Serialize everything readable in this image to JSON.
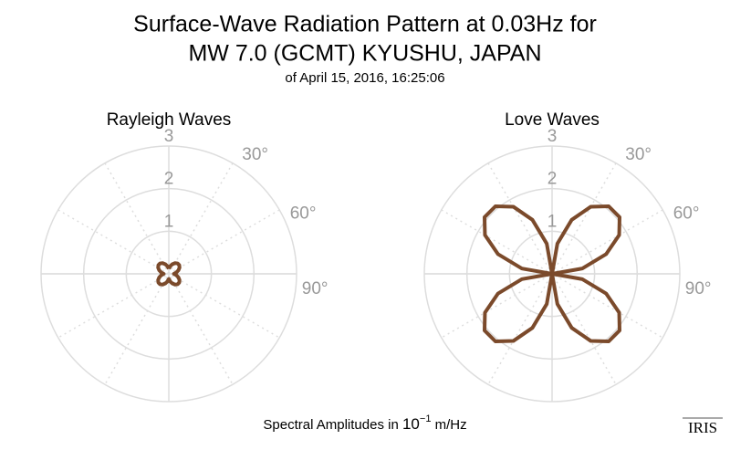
{
  "header": {
    "title_line1": "Surface-Wave Radiation Pattern at 0.03Hz for",
    "title_line2": "MW 7.0 (GCMT) KYUSHU, JAPAN",
    "subtitle": "of April 15, 2016, 16:25:06"
  },
  "chart_data": [
    {
      "type": "polar",
      "title": "Rayleigh Waves",
      "color": "#7b4a2b",
      "rlim": [
        0,
        3
      ],
      "rticks": [
        1,
        2,
        3
      ],
      "thetaticks": [
        {
          "value": 30,
          "label": "30°"
        },
        {
          "value": 60,
          "label": "60°"
        },
        {
          "value": 90,
          "label": "90°"
        }
      ],
      "theta": [
        0,
        10,
        20,
        30,
        40,
        50,
        60,
        70,
        80,
        90,
        100,
        110,
        120,
        130,
        140,
        150,
        160,
        170,
        180,
        190,
        200,
        210,
        220,
        230,
        240,
        250,
        260,
        270,
        280,
        290,
        300,
        310,
        320,
        330,
        340,
        350,
        360
      ],
      "r": [
        0.12,
        0.18,
        0.24,
        0.29,
        0.32,
        0.32,
        0.29,
        0.24,
        0.18,
        0.12,
        0.18,
        0.24,
        0.29,
        0.32,
        0.32,
        0.29,
        0.24,
        0.18,
        0.12,
        0.18,
        0.24,
        0.29,
        0.32,
        0.32,
        0.29,
        0.24,
        0.18,
        0.12,
        0.18,
        0.24,
        0.29,
        0.32,
        0.32,
        0.29,
        0.24,
        0.18,
        0.12
      ]
    },
    {
      "type": "polar",
      "title": "Love Waves",
      "color": "#7b4a2b",
      "rlim": [
        0,
        3
      ],
      "rticks": [
        1,
        2,
        3
      ],
      "thetaticks": [
        {
          "value": 30,
          "label": "30°"
        },
        {
          "value": 60,
          "label": "60°"
        },
        {
          "value": 90,
          "label": "90°"
        }
      ],
      "theta": [
        0,
        10,
        20,
        30,
        40,
        50,
        60,
        70,
        80,
        90,
        100,
        110,
        120,
        130,
        140,
        150,
        160,
        170,
        180,
        190,
        200,
        210,
        220,
        230,
        240,
        250,
        260,
        270,
        280,
        290,
        300,
        310,
        320,
        330,
        340,
        350,
        360
      ],
      "r": [
        0,
        0.72,
        1.35,
        1.82,
        2.07,
        2.07,
        1.82,
        1.35,
        0.72,
        0,
        0.72,
        1.35,
        1.82,
        2.07,
        2.07,
        1.82,
        1.35,
        0.72,
        0,
        0.72,
        1.35,
        1.82,
        2.07,
        2.07,
        1.82,
        1.35,
        0.72,
        0,
        0.72,
        1.35,
        1.82,
        2.07,
        2.07,
        1.82,
        1.35,
        0.72,
        0
      ]
    }
  ],
  "footer": {
    "text_before": "Spectral Amplitudes in ",
    "base": "10",
    "exponent": "−1",
    "text_after": " m/Hz"
  },
  "logo": "IRIS"
}
